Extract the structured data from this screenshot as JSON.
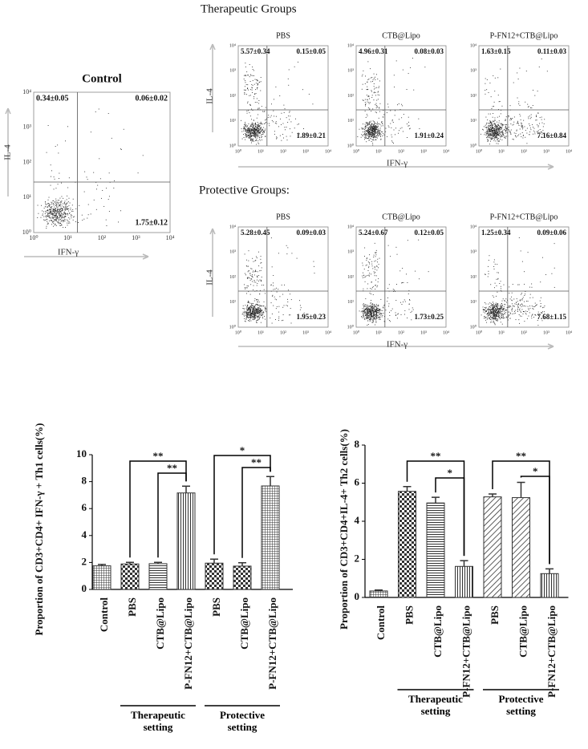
{
  "flow": {
    "tick_labels": [
      "10⁰",
      "10¹",
      "10²",
      "10³",
      "10⁴"
    ],
    "y_label": "IL-4",
    "x_label": "IFN-γ",
    "control": {
      "title": "Control",
      "quadrants": [
        "0.34±0.05",
        "0.06±0.02",
        "1.75±0.12"
      ]
    },
    "therapeutic": {
      "heading": "Therapeutic Groups",
      "panels": [
        {
          "title": "PBS",
          "quadrants": [
            "5.57±0.34",
            "0.15±0.05",
            "1.89±0.21"
          ]
        },
        {
          "title": "CTB@Lipo",
          "quadrants": [
            "4.96±0.31",
            "0.08±0.03",
            "1.91±0.24"
          ]
        },
        {
          "title": "P-FN12+CTB@Lipo",
          "quadrants": [
            "1.63±0.15",
            "0.11±0.03",
            "7.16±0.84"
          ]
        }
      ]
    },
    "protective": {
      "heading": "Protective Groups:",
      "panels": [
        {
          "title": "PBS",
          "quadrants": [
            "5.28±0.45",
            "0.09±0.03",
            "1.95±0.23"
          ]
        },
        {
          "title": "CTB@Lipo",
          "quadrants": [
            "5.24±0.67",
            "0.12±0.05",
            "1.73±0.25"
          ]
        },
        {
          "title": "P-FN12+CTB@Lipo",
          "quadrants": [
            "1.25±0.34",
            "0.09±0.06",
            "7.68±1.15"
          ]
        }
      ]
    }
  },
  "chart_data": [
    {
      "type": "bar",
      "y_label": "Proportion of CD3+CD4+ IFN-γ + Th1 cells(%)",
      "categories": [
        "Control",
        "PBS",
        "CTB@Lipo",
        "P-FN12+CTB@Lipo",
        "PBS",
        "CTB@Lipo",
        "P-FN12+CTB@Lipo"
      ],
      "values": [
        1.75,
        1.89,
        1.91,
        7.16,
        1.95,
        1.73,
        7.68
      ],
      "errors": [
        0.1,
        0.12,
        0.1,
        0.5,
        0.3,
        0.25,
        0.7
      ],
      "color": "#333333",
      "ylim": [
        0,
        10
      ],
      "yticks": [
        0,
        2,
        4,
        6,
        8,
        10
      ],
      "significance": [
        "**",
        "**",
        "*",
        "**"
      ],
      "group_labels": [
        "Therapeutic setting",
        "Protective setting"
      ]
    },
    {
      "type": "bar",
      "y_label": "Proportion of CD3+CD4+IL-4+ Th2 cells(%)",
      "categories": [
        "Control",
        "PBS",
        "CTB@Lipo",
        "P-FN12+CTB@Lipo",
        "PBS",
        "CTB@Lipo",
        "P-FN12+CTB@Lipo"
      ],
      "values": [
        0.34,
        5.57,
        4.96,
        1.63,
        5.28,
        5.24,
        1.25
      ],
      "errors": [
        0.05,
        0.25,
        0.3,
        0.3,
        0.15,
        0.8,
        0.25
      ],
      "color": "#333333",
      "ylim": [
        0,
        8
      ],
      "yticks": [
        0,
        2,
        4,
        6,
        8
      ],
      "significance": [
        "**",
        "*",
        "**",
        "*"
      ],
      "group_labels": [
        "Therapeutic setting",
        "Protective setting"
      ]
    }
  ]
}
